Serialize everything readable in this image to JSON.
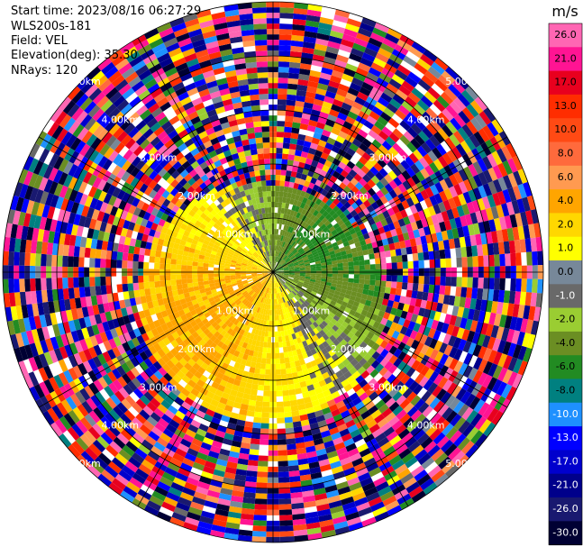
{
  "header": {
    "start_time": "Start time: 2023/08/16 06:27:29",
    "instrument": "WLS200s-181",
    "field": "Field: VEL",
    "elevation": "Elevation(deg): 35.30",
    "nrays": "NRays: 120"
  },
  "chart_data": {
    "type": "heatmap",
    "projection": "polar-ppi",
    "field": "VEL",
    "units": "m/s",
    "nrays": 120,
    "max_range_km": 5.0,
    "range_rings_km": [
      1,
      2,
      3,
      4,
      5
    ],
    "range_ring_labels": [
      "1.00km",
      "2.00km",
      "3.00km",
      "4.00km",
      "5.00km"
    ],
    "azimuth_spokes_deg": [
      0,
      30,
      60,
      90,
      120,
      150,
      180,
      210,
      240,
      270,
      300,
      330
    ],
    "colorbar": {
      "label": "m/s",
      "ticks": [
        "26.0",
        "21.0",
        "17.0",
        "13.0",
        "10.0",
        "8.0",
        "6.0",
        "4.0",
        "2.0",
        "1.0",
        "0.0",
        "-1.0",
        "-2.0",
        "-4.0",
        "-6.0",
        "-8.0",
        "-10.0",
        "-13.0",
        "-17.0",
        "-21.0",
        "-26.0",
        "-30.0"
      ],
      "bands": [
        {
          "min": 26,
          "max": 30,
          "color": "#ff66b3"
        },
        {
          "min": 21,
          "max": 26,
          "color": "#ff1493"
        },
        {
          "min": 17,
          "max": 21,
          "color": "#e8001e"
        },
        {
          "min": 13,
          "max": 17,
          "color": "#ff2d00"
        },
        {
          "min": 10,
          "max": 13,
          "color": "#ff4a14"
        },
        {
          "min": 8,
          "max": 10,
          "color": "#ff6a3c"
        },
        {
          "min": 6,
          "max": 8,
          "color": "#ff9a50"
        },
        {
          "min": 4,
          "max": 6,
          "color": "#ffa500"
        },
        {
          "min": 2,
          "max": 4,
          "color": "#ffd700"
        },
        {
          "min": 1,
          "max": 2,
          "color": "#ffff00"
        },
        {
          "min": 0,
          "max": 1,
          "color": "#778899"
        },
        {
          "min": -1,
          "max": 0,
          "color": "#696969"
        },
        {
          "min": -2,
          "max": -1,
          "color": "#9acd32"
        },
        {
          "min": -4,
          "max": -2,
          "color": "#6b8e23"
        },
        {
          "min": -6,
          "max": -4,
          "color": "#228b22"
        },
        {
          "min": -8,
          "max": -6,
          "color": "#008080"
        },
        {
          "min": -10,
          "max": -8,
          "color": "#1e90ff"
        },
        {
          "min": -13,
          "max": -10,
          "color": "#0000ff"
        },
        {
          "min": -17,
          "max": -13,
          "color": "#0000cd"
        },
        {
          "min": -21,
          "max": -17,
          "color": "#00008b"
        },
        {
          "min": -26,
          "max": -21,
          "color": "#191970"
        },
        {
          "min": -30,
          "max": -26,
          "color": "#000033"
        }
      ]
    }
  }
}
